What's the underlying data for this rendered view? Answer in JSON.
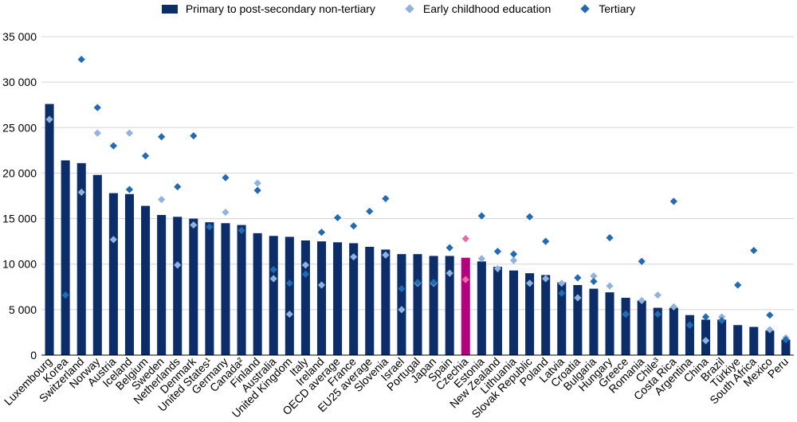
{
  "chart_data": {
    "type": "bar",
    "title": "",
    "xlabel": "",
    "ylabel": "",
    "ylim": [
      0,
      35000
    ],
    "yticks": [
      0,
      5000,
      10000,
      15000,
      20000,
      25000,
      30000,
      35000
    ],
    "ytick_labels": [
      "0",
      "5 000",
      "10 000",
      "15 000",
      "20 000",
      "25 000",
      "30 000",
      "35 000"
    ],
    "grid": true,
    "legend_position": "top-center",
    "highlight_category": "Czechia",
    "categories": [
      "Luxembourg",
      "Korea",
      "Switzerland",
      "Norway",
      "Austria",
      "Iceland",
      "Belgium",
      "Sweden",
      "Netherlands",
      "Denmark",
      "United States¹",
      "Germany",
      "Canada²",
      "Finland",
      "Australia",
      "United Kingdom",
      "Italy",
      "Ireland",
      "OECD average",
      "France",
      "EU25 average",
      "Slovenia",
      "Israel",
      "Portugal",
      "Japan",
      "Spain",
      "Czechia",
      "Estonia",
      "New Zealand",
      "Lithuania",
      "Slovak Republic",
      "Poland",
      "Latvia",
      "Croatia",
      "Bulgaria",
      "Hungary",
      "Greece",
      "Romania",
      "Chile³",
      "Costa Rica",
      "Argentina",
      "China",
      "Brazil",
      "Türkiye",
      "South Africa",
      "Mexico",
      "Peru"
    ],
    "series": [
      {
        "name": "Primary to post-secondary non-tertiary",
        "kind": "bar",
        "color": "#0b2e6b",
        "highlight_color": "#b5007f",
        "values": [
          27600,
          21400,
          21100,
          19800,
          17800,
          17700,
          16400,
          15400,
          15200,
          15000,
          14600,
          14500,
          14300,
          13400,
          13100,
          13000,
          12600,
          12500,
          12400,
          12300,
          11900,
          11600,
          11100,
          11100,
          10900,
          10900,
          10700,
          10300,
          9700,
          9300,
          9000,
          8800,
          8000,
          7700,
          7300,
          6900,
          6300,
          6000,
          5200,
          5200,
          4400,
          3900,
          3900,
          3300,
          3100,
          2700,
          1700
        ]
      },
      {
        "name": "Early childhood education",
        "kind": "diamond",
        "color": "#8fb2e0",
        "highlight_color": "#e86aa6",
        "values": [
          25900,
          null,
          17900,
          24400,
          12700,
          24400,
          null,
          17100,
          9900,
          14300,
          null,
          15700,
          null,
          18900,
          8400,
          4500,
          9900,
          7700,
          null,
          10800,
          null,
          11000,
          5000,
          7900,
          7900,
          9000,
          8300,
          10600,
          9500,
          10400,
          7900,
          8400,
          7900,
          6300,
          8700,
          7600,
          4500,
          6000,
          6600,
          5300,
          3300,
          1600,
          4200,
          null,
          null,
          2800,
          1900
        ]
      },
      {
        "name": "Tertiary",
        "kind": "diamond",
        "color": "#1f6bb5",
        "highlight_color": "#e86aa6",
        "values": [
          null,
          6600,
          32500,
          27200,
          23000,
          18200,
          21900,
          24000,
          18500,
          24100,
          14100,
          19500,
          13700,
          18100,
          9400,
          7900,
          8900,
          13500,
          15100,
          14200,
          15800,
          17200,
          7300,
          8000,
          8000,
          11800,
          12800,
          15300,
          11400,
          11100,
          15200,
          12500,
          6800,
          8500,
          8100,
          12900,
          4500,
          10300,
          4500,
          16900,
          3300,
          4200,
          3800,
          7700,
          11500,
          4400,
          1700
        ]
      }
    ]
  }
}
